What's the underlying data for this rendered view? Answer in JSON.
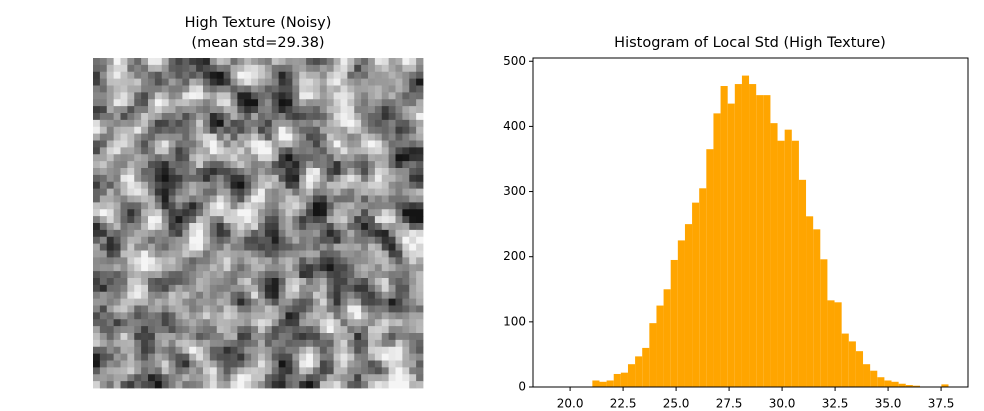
{
  "chart_data": [
    {
      "type": "image",
      "title": "High Texture (Noisy)",
      "subtitle": "(mean std=29.38)"
    },
    {
      "type": "histogram",
      "title": "Histogram of Local Std (High Texture)",
      "color": "#ffa500",
      "bins": [
        21.05,
        21.386,
        21.722,
        22.058,
        22.394,
        22.73,
        23.066,
        23.402,
        23.738,
        24.074,
        24.41,
        24.746,
        25.082,
        25.418,
        25.754,
        26.09,
        26.426,
        26.762,
        27.098,
        27.434,
        27.77,
        28.106,
        28.442,
        28.778,
        29.114,
        29.45,
        29.786,
        30.122,
        30.458,
        30.794,
        31.13,
        31.466,
        31.802,
        32.138,
        32.474,
        32.81,
        33.146,
        33.482,
        33.818,
        34.154,
        34.49,
        34.826,
        35.162,
        35.498,
        35.834,
        36.17,
        36.506,
        36.842,
        37.178,
        37.514,
        37.85
      ],
      "values": [
        10,
        8,
        10,
        20,
        22,
        35,
        47,
        60,
        98,
        125,
        150,
        195,
        225,
        250,
        283,
        305,
        365,
        420,
        462,
        435,
        465,
        478,
        465,
        448,
        448,
        405,
        378,
        395,
        378,
        318,
        262,
        242,
        196,
        133,
        130,
        82,
        70,
        55,
        35,
        25,
        15,
        10,
        8,
        5,
        3,
        2,
        0,
        0,
        0,
        4
      ],
      "xlim": [
        18.25,
        38.77
      ],
      "ylim": [
        0,
        505
      ],
      "xticks": [
        {
          "value": 20,
          "label": "20.0"
        },
        22.5,
        {
          "value": 25,
          "label": "25.0"
        },
        27.5,
        {
          "value": 30,
          "label": "30.0"
        },
        32.5,
        {
          "value": 35,
          "label": "35.0"
        },
        37.5
      ],
      "yticks": [
        0,
        100,
        200,
        300,
        400,
        500
      ]
    }
  ]
}
